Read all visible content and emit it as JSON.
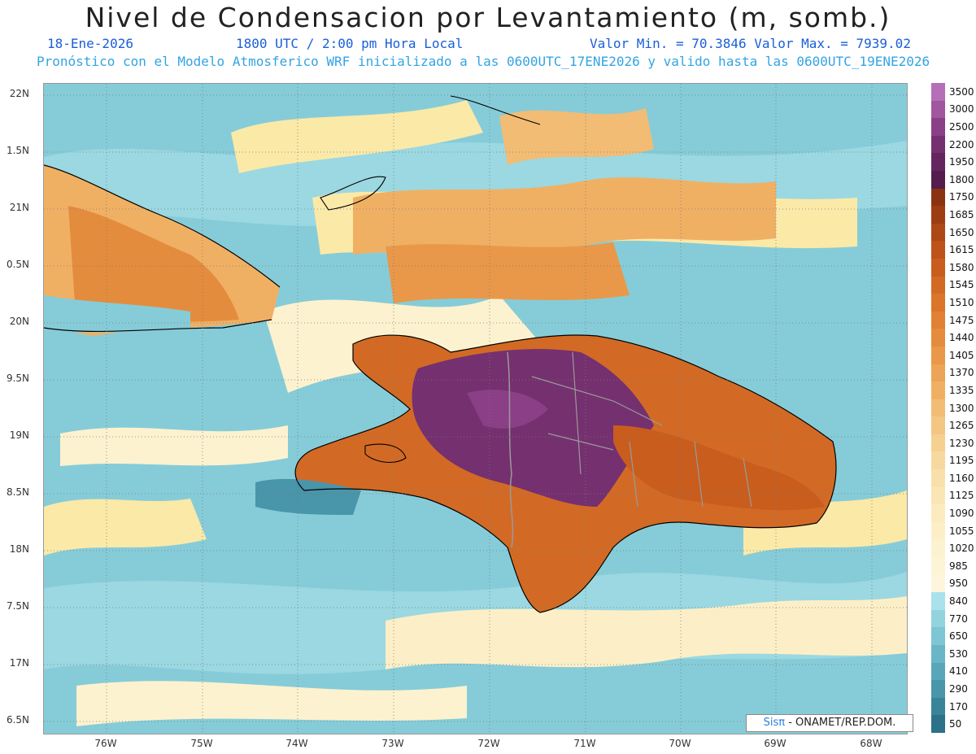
{
  "header": {
    "title": "Nivel de Condensacion por Levantamiento (m, somb.)",
    "date": "18-Ene-2026",
    "time": "1800 UTC / 2:00 pm Hora Local",
    "minmax": "Valor Min. = 70.3846  Valor Max. = 7939.02",
    "model_line": "Pronóstico con el Modelo Atmosferico WRF inicializado a las 0600UTC_17ENE2026 y valido hasta las  0600UTC_19ENE2026"
  },
  "lat_labels": [
    "22N",
    "1.5N",
    "21N",
    "0.5N",
    "20N",
    "9.5N",
    "19N",
    "8.5N",
    "18N",
    "7.5N",
    "17N",
    "6.5N"
  ],
  "lon_labels": [
    "76W",
    "75W",
    "74W",
    "73W",
    "72W",
    "71W",
    "70W",
    "69W",
    "68W"
  ],
  "colorbar": {
    "labels": [
      "3500",
      "3000",
      "2500",
      "2200",
      "1950",
      "1800",
      "1750",
      "1685",
      "1650",
      "1615",
      "1580",
      "1545",
      "1510",
      "1475",
      "1440",
      "1405",
      "1370",
      "1335",
      "1300",
      "1265",
      "1230",
      "1195",
      "1160",
      "1125",
      "1090",
      "1055",
      "1020",
      "985",
      "950",
      "840",
      "770",
      "650",
      "530",
      "410",
      "290",
      "170",
      "50"
    ],
    "colors": [
      "#b46fb8",
      "#a0579f",
      "#8a3f86",
      "#75306f",
      "#652660",
      "#551d4d",
      "#8a3311",
      "#9d3d14",
      "#ae4716",
      "#bd521a",
      "#c85d1e",
      "#d26a25",
      "#da752b",
      "#e08133",
      "#e48c3d",
      "#e99849",
      "#eca456",
      "#f0b064",
      "#f2bc74",
      "#f4c683",
      "#f6d091",
      "#f7d89e",
      "#f9e0aa",
      "#fae6b5",
      "#fbebbf",
      "#fcefc7",
      "#fdf2cf",
      "#fdf4d6",
      "#fef6dc",
      "#a9e2ea",
      "#92d3de",
      "#7ec6d3",
      "#6bb6c6",
      "#59a6b8",
      "#4995a9",
      "#3a8499",
      "#2d7289"
    ]
  },
  "credit": {
    "sis": "Sisπ",
    "org": " - ONAMET/REP.DOM."
  },
  "colors": {
    "ocean": "#7ec8d4",
    "coast": "#000000",
    "borders": "#9a9a9a"
  }
}
